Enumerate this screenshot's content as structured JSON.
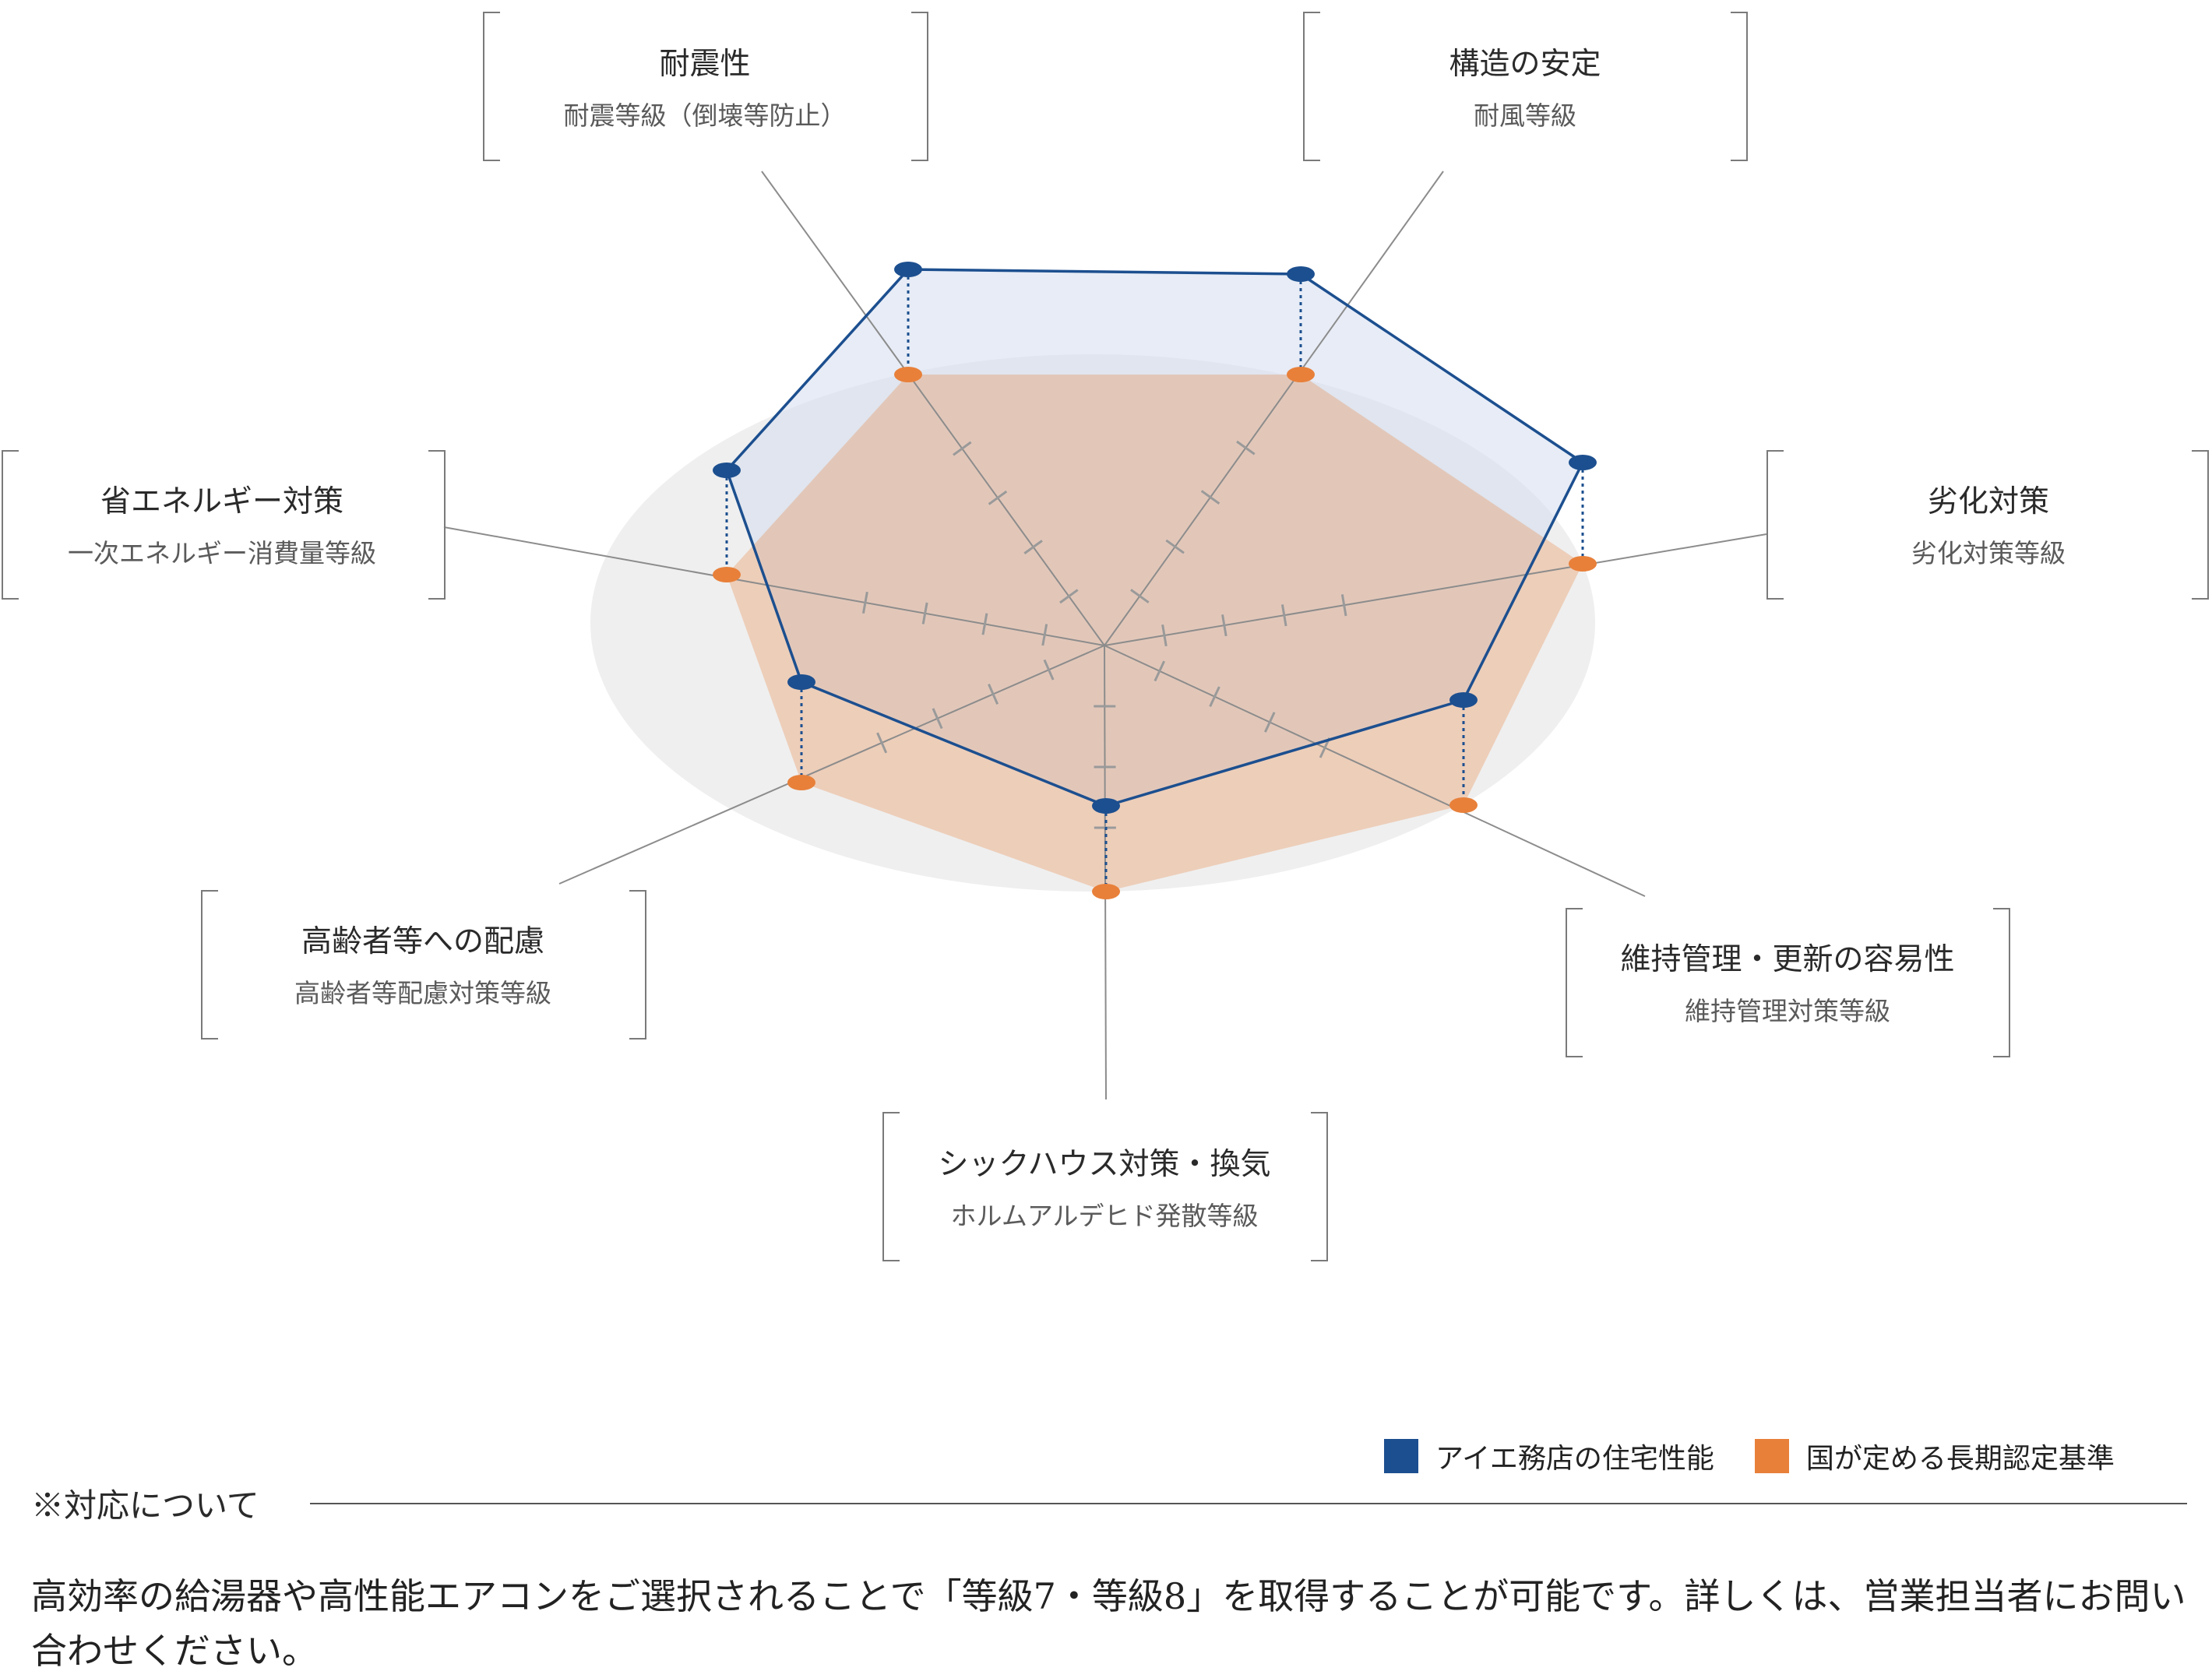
{
  "chart_data": {
    "type": "radar",
    "title": "",
    "axes": [
      {
        "id": "earthquake",
        "title": "耐震性",
        "subtitle": "耐震等級（倒壊等防止）"
      },
      {
        "id": "structure",
        "title": "構造の安定",
        "subtitle": "耐風等級"
      },
      {
        "id": "deterioration",
        "title": "劣化対策",
        "subtitle": "劣化対策等級"
      },
      {
        "id": "maintenance",
        "title": "維持管理・更新の容易性",
        "subtitle": "維持管理対策等級"
      },
      {
        "id": "sickhouse",
        "title": "シックハウス対策・換気",
        "subtitle": "ホルムアルデヒド発散等級"
      },
      {
        "id": "elderly",
        "title": "高齢者等への配慮",
        "subtitle": "高齢者等配慮対策等級"
      },
      {
        "id": "energy",
        "title": "省エネルギー対策",
        "subtitle": "一次エネルギー消費量等級"
      }
    ],
    "series": [
      {
        "name": "アイエ務店の住宅性能",
        "color": "#1c4f8f"
      },
      {
        "name": "国が定める長期認定基準",
        "color": "#e8803a"
      }
    ]
  },
  "legend": {
    "company": "アイエ務店の住宅性能",
    "national": "国が定める長期認定基準"
  },
  "note": {
    "title": "※対応について",
    "body": "高効率の給湯器や高性能エアコンをご選択されることで「等級7・等級8」を取得することが可能です。詳しくは、営業担当者にお問い合わせください。"
  },
  "colors": {
    "company": "#1c4f8f",
    "national": "#e8803a"
  }
}
